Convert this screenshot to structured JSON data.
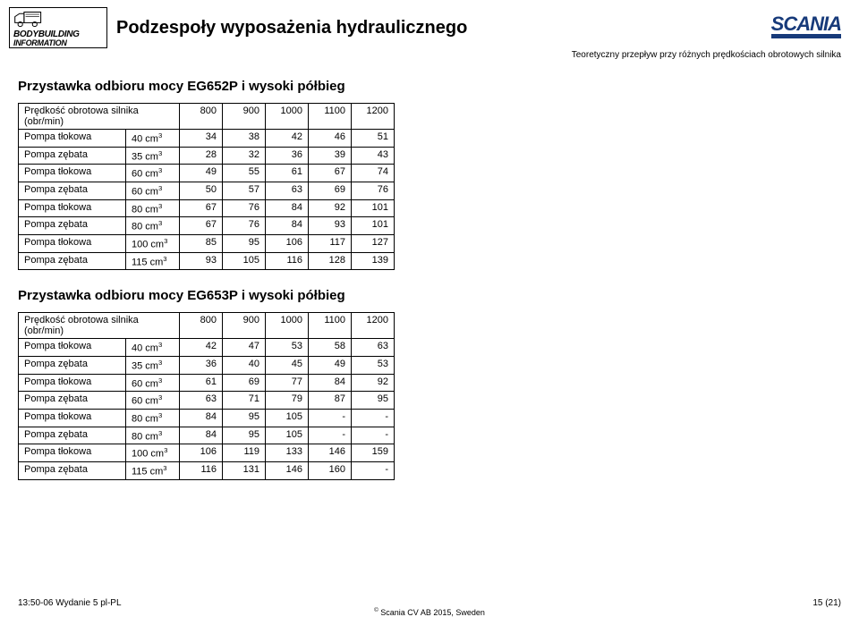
{
  "header": {
    "logo_line1": "BODYBUILDING",
    "logo_line2": "INFORMATION",
    "main_title": "Podzespoły wyposażenia hydraulicznego",
    "brand": "SCANIA",
    "brand_color": "#173a7a",
    "right_subtitle": "Teoretyczny przepływ przy różnych prędkościach obrotowych silnika"
  },
  "section1": {
    "heading": "Przystawka odbioru mocy EG652P i wysoki półbieg",
    "header_label": "Prędkość obrotowa silnika (obr/min)",
    "speeds": [
      "800",
      "900",
      "1000",
      "1100",
      "1200"
    ],
    "rows": [
      {
        "l": "Pompa tłokowa",
        "s": "40 cm",
        "v": [
          "34",
          "38",
          "42",
          "46",
          "51"
        ]
      },
      {
        "l": "Pompa zębata",
        "s": "35 cm",
        "v": [
          "28",
          "32",
          "36",
          "39",
          "43"
        ]
      },
      {
        "l": "Pompa tłokowa",
        "s": "60 cm",
        "v": [
          "49",
          "55",
          "61",
          "67",
          "74"
        ]
      },
      {
        "l": "Pompa zębata",
        "s": "60 cm",
        "v": [
          "50",
          "57",
          "63",
          "69",
          "76"
        ]
      },
      {
        "l": "Pompa tłokowa",
        "s": "80 cm",
        "v": [
          "67",
          "76",
          "84",
          "92",
          "101"
        ]
      },
      {
        "l": "Pompa zębata",
        "s": "80 cm",
        "v": [
          "67",
          "76",
          "84",
          "93",
          "101"
        ]
      },
      {
        "l": "Pompa tłokowa",
        "s": "100 cm",
        "v": [
          "85",
          "95",
          "106",
          "117",
          "127"
        ]
      },
      {
        "l": "Pompa zębata",
        "s": "115 cm",
        "v": [
          "93",
          "105",
          "116",
          "128",
          "139"
        ]
      }
    ]
  },
  "section2": {
    "heading": "Przystawka odbioru mocy EG653P i wysoki półbieg",
    "header_label": "Prędkość obrotowa silnika (obr/min)",
    "speeds": [
      "800",
      "900",
      "1000",
      "1100",
      "1200"
    ],
    "rows": [
      {
        "l": "Pompa tłokowa",
        "s": "40 cm",
        "v": [
          "42",
          "47",
          "53",
          "58",
          "63"
        ]
      },
      {
        "l": "Pompa zębata",
        "s": "35 cm",
        "v": [
          "36",
          "40",
          "45",
          "49",
          "53"
        ]
      },
      {
        "l": "Pompa tłokowa",
        "s": "60 cm",
        "v": [
          "61",
          "69",
          "77",
          "84",
          "92"
        ]
      },
      {
        "l": "Pompa zębata",
        "s": "60 cm",
        "v": [
          "63",
          "71",
          "79",
          "87",
          "95"
        ]
      },
      {
        "l": "Pompa tłokowa",
        "s": "80 cm",
        "v": [
          "84",
          "95",
          "105",
          "-",
          "-"
        ]
      },
      {
        "l": "Pompa zębata",
        "s": "80 cm",
        "v": [
          "84",
          "95",
          "105",
          "-",
          "-"
        ]
      },
      {
        "l": "Pompa tłokowa",
        "s": "100 cm",
        "v": [
          "106",
          "119",
          "133",
          "146",
          "159"
        ]
      },
      {
        "l": "Pompa zębata",
        "s": "115 cm",
        "v": [
          "116",
          "131",
          "146",
          "160",
          "-"
        ]
      }
    ]
  },
  "footer": {
    "left": "13:50-06 Wydanie 5 pl-PL",
    "right": "15 (21)",
    "copyright": "Scania CV AB 2015, Sweden"
  },
  "style": {
    "page_bg": "#ffffff",
    "text_color": "#000000",
    "table_border": "#000000",
    "title_fontsize": 20,
    "heading_fontsize": 15,
    "table_fontsize": 11,
    "footer_fontsize": 10
  }
}
